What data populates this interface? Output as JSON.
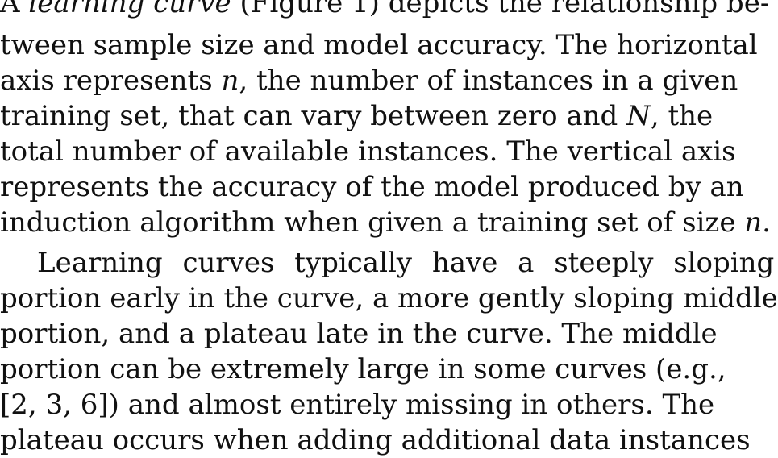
{
  "paragraph1": [
    {
      "text": "A learning curve (Figure 1) depicts the relationship be-",
      "italic_word": "learning curve"
    },
    {
      "text": "tween sample size and model accuracy. The horizontal"
    },
    {
      "text": "axis represents n, the number of instances in a given"
    },
    {
      "text": "training set, that can vary between zero and N, the"
    },
    {
      "text": "total number of available instances. The vertical axis"
    },
    {
      "text": "represents the accuracy of the model produced by an"
    },
    {
      "text": "induction algorithm when given a training set of size n."
    }
  ],
  "paragraph2": [
    {
      "text": "Learning curves typically have a steeply sloping"
    },
    {
      "text": "portion early in the curve, a more gently sloping middle"
    },
    {
      "text": "portion, and a plateau late in the curve. The middle"
    },
    {
      "text": "portion can be extremely large in some curves (e.g.,"
    },
    {
      "text": "[2, 3, 6]) and almost entirely missing in others. The"
    },
    {
      "text": "plateau occurs when adding additional data instances"
    }
  ]
}
